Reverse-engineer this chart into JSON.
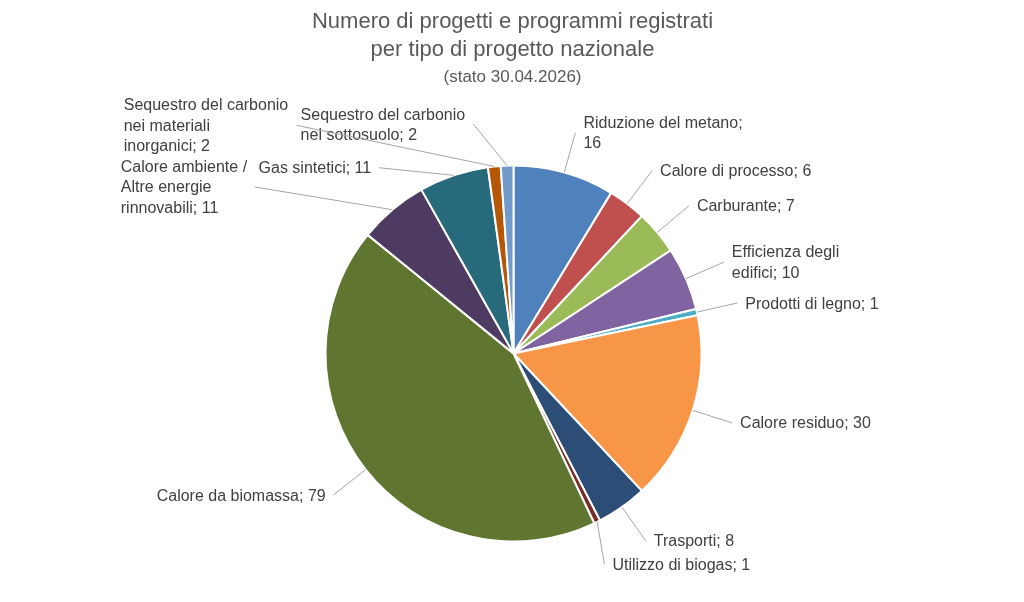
{
  "chart_data": {
    "type": "pie",
    "title": "Numero di progetti e programmi registrati per tipo di progetto nazionale",
    "subtitle": "(stato 30.04.2026)",
    "categories": [
      null,
      null,
      null,
      null,
      null,
      null,
      null,
      null,
      null,
      null,
      null,
      null,
      null
    ],
    "value_labels": [
      "Riduzione del metano; 16",
      "Calore di processo; 6",
      "Carburante; 7",
      "Efficienza degli edifici; 10",
      "Prodotti di legno; 1",
      "Calore residuo; 30",
      "Trasporti; 8",
      "Utilizzo di biogas; 1",
      "Calore da biomassa; 79",
      "Calore ambiente / Altre energie rinnovabili; 11",
      "Gas sintetici; 11",
      "Sequestro del carbonio nei materiali inorganici; 2",
      "Sequestro del carbonio nel sottosuolo; 2"
    ],
    "values": [
      16,
      6,
      7,
      10,
      1,
      30,
      8,
      1,
      79,
      11,
      11,
      2,
      2
    ],
    "colors": [
      "#4f81bd",
      "#c0504d",
      "#9bbb59",
      "#8064a2",
      "#4bacc6",
      "#f79646",
      "#2c4d75",
      "#772c2a",
      "#5f7530",
      "#4d3b62",
      "#276a7c",
      "#b65708",
      "#729aca"
    ]
  }
}
